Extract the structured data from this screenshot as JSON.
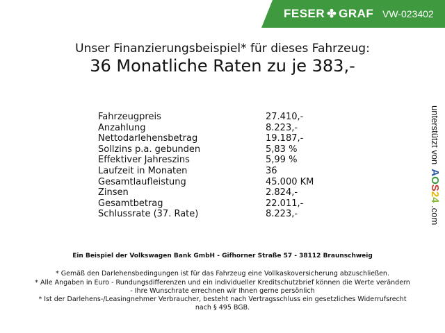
{
  "header": {
    "brand_left": "FESER",
    "brand_right": "GRAF",
    "vehicle_id": "VW-023402",
    "banner_color": "#3f9a3f"
  },
  "title": {
    "line1": "Unser Finanzierungsbeispiel* für dieses Fahrzeug:",
    "line2": "36 Monatliche Raten zu je 383,-"
  },
  "rows": [
    {
      "label": "Fahrzeugpreis",
      "value": "27.410,-"
    },
    {
      "label": "Anzahlung",
      "value": "8.223,-"
    },
    {
      "label": "Nettodarlehensbetrag",
      "value": "19.187,-"
    },
    {
      "label": "Sollzins p.a. gebunden",
      "value": "5,83 %"
    },
    {
      "label": "Effektiver Jahreszins",
      "value": "5,99 %"
    },
    {
      "label": "Laufzeit in Monaten",
      "value": "36"
    },
    {
      "label": "Gesamtlaufleistung",
      "value": "45.000 KM"
    },
    {
      "label": "Zinsen",
      "value": "2.824,-"
    },
    {
      "label": "Gesamtbetrag",
      "value": "22.011,-"
    },
    {
      "label": "Schlussrate (37. Rate)",
      "value": "8.223,-"
    }
  ],
  "side": {
    "text": "unterstützt von",
    "logo": "AOS24",
    ".com": ".com",
    "suffix": ".com"
  },
  "footer": {
    "bank": "Ein Beispiel der Volkswagen Bank GmbH - Gifhorner Straße 57 - 38112 Braunschweig",
    "note1": "* Gemäß den Darlehensbedingungen ist für das Fahrzeug eine Vollkaskoversicherung abzuschließen.",
    "note2a": "* Alle Angaben in Euro - Rundungsdifferenzen und ein individueller Kreditschutzbrief können die Werte verändern",
    "note2b": "- Ihre Wunschrate errechnen wir Ihnen gerne persönlich",
    "note3a": "* Ist der Darlehens-/Leasingnehmer Verbraucher, besteht nach Vertragsschluss ein gesetzliches Widerrufsrecht",
    "note3b": "nach § 495 BGB."
  }
}
